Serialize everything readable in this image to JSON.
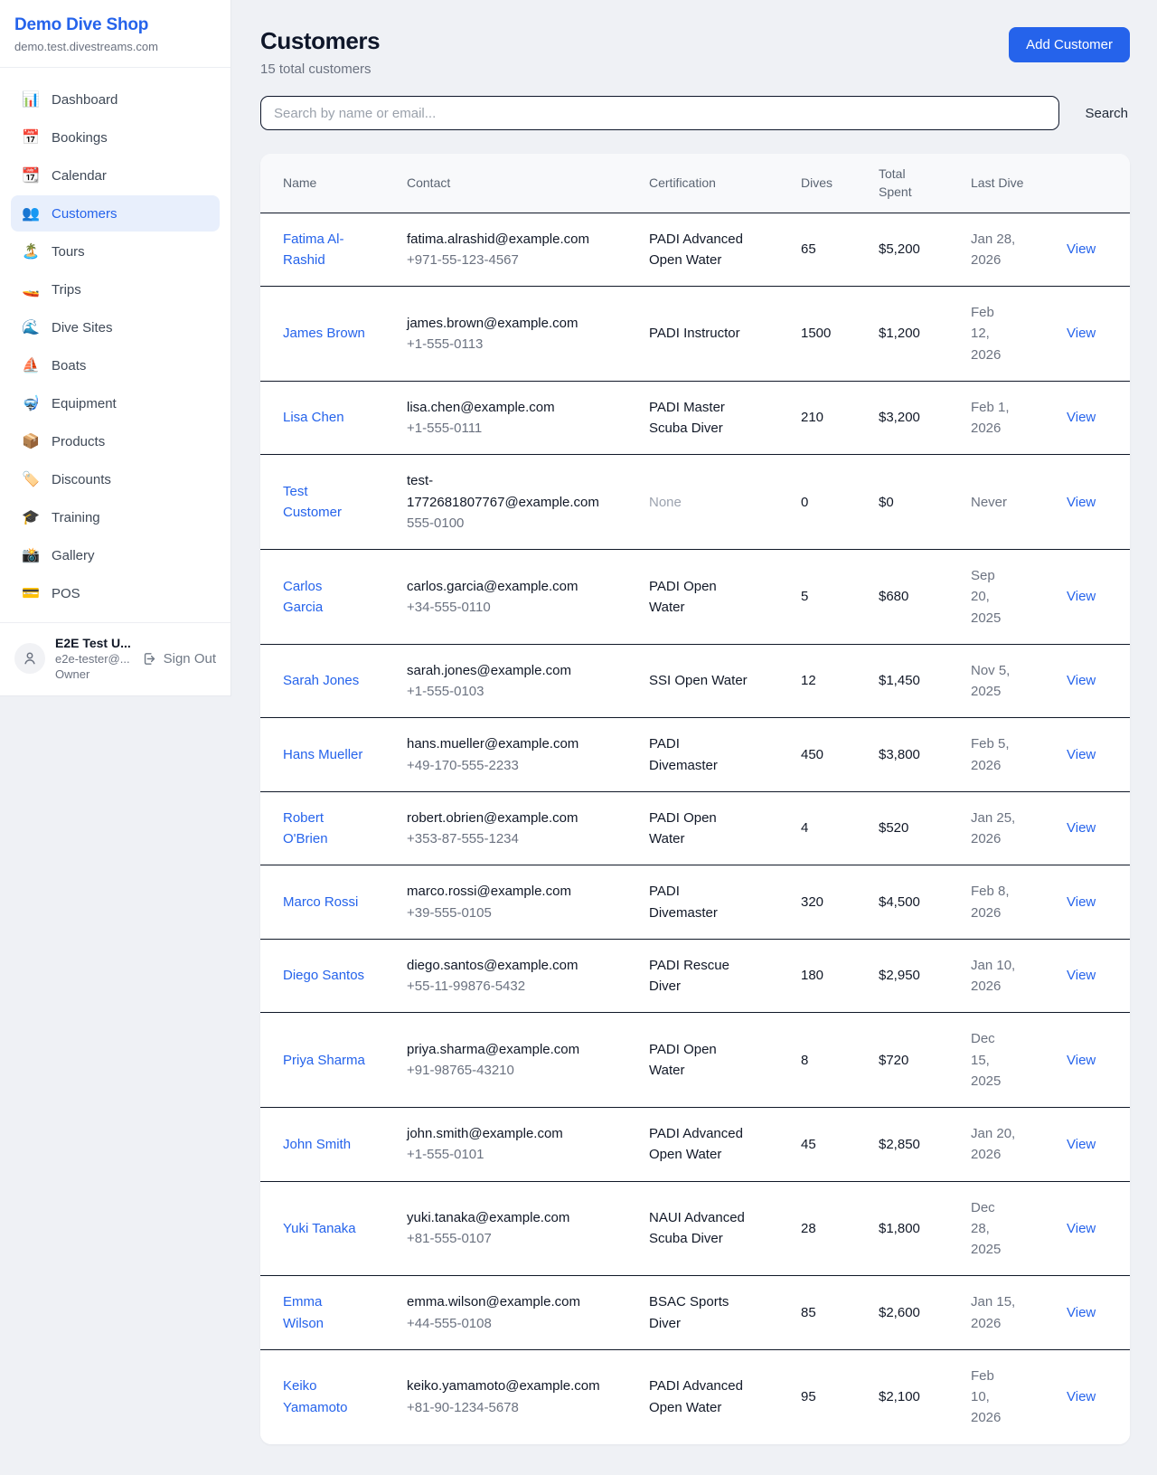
{
  "colors": {
    "accent": "#2563eb",
    "active_item_bg": "#e8effc",
    "page_bg": "#eff1f5",
    "row_border": "#101828",
    "muted_text": "#6b7280"
  },
  "sidebar": {
    "shop_name": "Demo Dive Shop",
    "shop_domain": "demo.test.divestreams.com",
    "items": [
      {
        "label": "Dashboard",
        "glyph": "📊",
        "icon_name": "bar-chart-icon",
        "active": false
      },
      {
        "label": "Bookings",
        "glyph": "📅",
        "icon_name": "calendar-date-icon",
        "active": false
      },
      {
        "label": "Calendar",
        "glyph": "📆",
        "icon_name": "tear-off-calendar-icon",
        "active": false
      },
      {
        "label": "Customers",
        "glyph": "👥",
        "icon_name": "people-icon",
        "active": true
      },
      {
        "label": "Tours",
        "glyph": "🏝️",
        "icon_name": "island-icon",
        "active": false
      },
      {
        "label": "Trips",
        "glyph": "🚤",
        "icon_name": "speedboat-icon",
        "active": false
      },
      {
        "label": "Dive Sites",
        "glyph": "🌊",
        "icon_name": "wave-icon",
        "active": false
      },
      {
        "label": "Boats",
        "glyph": "⛵",
        "icon_name": "sailboat-icon",
        "active": false
      },
      {
        "label": "Equipment",
        "glyph": "🤿",
        "icon_name": "diving-mask-icon",
        "active": false
      },
      {
        "label": "Products",
        "glyph": "📦",
        "icon_name": "package-icon",
        "active": false
      },
      {
        "label": "Discounts",
        "glyph": "🏷️",
        "icon_name": "tag-icon",
        "active": false
      },
      {
        "label": "Training",
        "glyph": "🎓",
        "icon_name": "graduation-cap-icon",
        "active": false
      },
      {
        "label": "Gallery",
        "glyph": "📸",
        "icon_name": "camera-flash-icon",
        "active": false
      },
      {
        "label": "POS",
        "glyph": "💳",
        "icon_name": "credit-card-icon",
        "active": false
      }
    ],
    "user": {
      "name": "E2E Test U...",
      "email": "e2e-tester@...",
      "role": "Owner",
      "sign_out_label": "Sign Out"
    }
  },
  "header": {
    "title": "Customers",
    "subtitle": "15 total customers",
    "add_button_label": "Add Customer"
  },
  "search": {
    "placeholder": "Search by name or email...",
    "button_label": "Search"
  },
  "table": {
    "columns": [
      "Name",
      "Contact",
      "Certification",
      "Dives",
      "Total Spent",
      "Last Dive",
      ""
    ],
    "view_label": "View",
    "rows": [
      {
        "name": "Fatima Al-Rashid",
        "email": "fatima.alrashid@example.com",
        "phone": "+971-55-123-4567",
        "certification": "PADI Advanced Open Water",
        "dives": "65",
        "total_spent": "$5,200",
        "last_dive": "Jan 28, 2026"
      },
      {
        "name": "James Brown",
        "email": "james.brown@example.com",
        "phone": "+1-555-0113",
        "certification": "PADI Instructor",
        "dives": "1500",
        "total_spent": "$1,200",
        "last_dive": "Feb 12, 2026"
      },
      {
        "name": "Lisa Chen",
        "email": "lisa.chen@example.com",
        "phone": "+1-555-0111",
        "certification": "PADI Master Scuba Diver",
        "dives": "210",
        "total_spent": "$3,200",
        "last_dive": "Feb 1, 2026"
      },
      {
        "name": "Test Customer",
        "email": "test-1772681807767@example.com",
        "phone": "555-0100",
        "certification": "None",
        "dives": "0",
        "total_spent": "$0",
        "last_dive": "Never"
      },
      {
        "name": "Carlos Garcia",
        "email": "carlos.garcia@example.com",
        "phone": "+34-555-0110",
        "certification": "PADI Open Water",
        "dives": "5",
        "total_spent": "$680",
        "last_dive": "Sep 20, 2025"
      },
      {
        "name": "Sarah Jones",
        "email": "sarah.jones@example.com",
        "phone": "+1-555-0103",
        "certification": "SSI Open Water",
        "dives": "12",
        "total_spent": "$1,450",
        "last_dive": "Nov 5, 2025"
      },
      {
        "name": "Hans Mueller",
        "email": "hans.mueller@example.com",
        "phone": "+49-170-555-2233",
        "certification": "PADI Divemaster",
        "dives": "450",
        "total_spent": "$3,800",
        "last_dive": "Feb 5, 2026"
      },
      {
        "name": "Robert O'Brien",
        "email": "robert.obrien@example.com",
        "phone": "+353-87-555-1234",
        "certification": "PADI Open Water",
        "dives": "4",
        "total_spent": "$520",
        "last_dive": "Jan 25, 2026"
      },
      {
        "name": "Marco Rossi",
        "email": "marco.rossi@example.com",
        "phone": "+39-555-0105",
        "certification": "PADI Divemaster",
        "dives": "320",
        "total_spent": "$4,500",
        "last_dive": "Feb 8, 2026"
      },
      {
        "name": "Diego Santos",
        "email": "diego.santos@example.com",
        "phone": "+55-11-99876-5432",
        "certification": "PADI Rescue Diver",
        "dives": "180",
        "total_spent": "$2,950",
        "last_dive": "Jan 10, 2026"
      },
      {
        "name": "Priya Sharma",
        "email": "priya.sharma@example.com",
        "phone": "+91-98765-43210",
        "certification": "PADI Open Water",
        "dives": "8",
        "total_spent": "$720",
        "last_dive": "Dec 15, 2025"
      },
      {
        "name": "John Smith",
        "email": "john.smith@example.com",
        "phone": "+1-555-0101",
        "certification": "PADI Advanced Open Water",
        "dives": "45",
        "total_spent": "$2,850",
        "last_dive": "Jan 20, 2026"
      },
      {
        "name": "Yuki Tanaka",
        "email": "yuki.tanaka@example.com",
        "phone": "+81-555-0107",
        "certification": "NAUI Advanced Scuba Diver",
        "dives": "28",
        "total_spent": "$1,800",
        "last_dive": "Dec 28, 2025"
      },
      {
        "name": "Emma Wilson",
        "email": "emma.wilson@example.com",
        "phone": "+44-555-0108",
        "certification": "BSAC Sports Diver",
        "dives": "85",
        "total_spent": "$2,600",
        "last_dive": "Jan 15, 2026"
      },
      {
        "name": "Keiko Yamamoto",
        "email": "keiko.yamamoto@example.com",
        "phone": "+81-90-1234-5678",
        "certification": "PADI Advanced Open Water",
        "dives": "95",
        "total_spent": "$2,100",
        "last_dive": "Feb 10, 2026"
      }
    ]
  }
}
